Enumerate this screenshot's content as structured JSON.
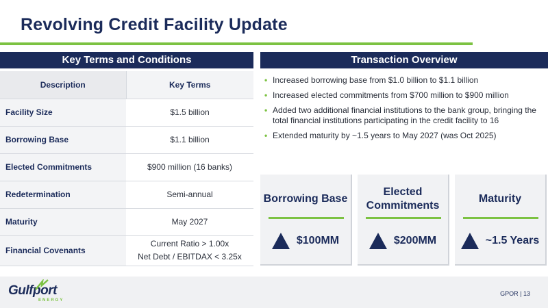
{
  "title": "Revolving Credit Facility Update",
  "left_panel": {
    "header": "Key Terms and Conditions",
    "columns": [
      "Description",
      "Key Terms"
    ],
    "rows": [
      {
        "desc": "Facility Size",
        "terms": [
          "$1.5 billion"
        ]
      },
      {
        "desc": "Borrowing Base",
        "terms": [
          "$1.1 billion"
        ]
      },
      {
        "desc": "Elected Commitments",
        "terms": [
          "$900 million (16 banks)"
        ]
      },
      {
        "desc": "Redetermination",
        "terms": [
          "Semi-annual"
        ]
      },
      {
        "desc": "Maturity",
        "terms": [
          "May 2027"
        ]
      },
      {
        "desc": "Financial Covenants",
        "terms": [
          "Current Ratio > 1.00x",
          "Net Debt / EBITDAX < 3.25x"
        ]
      }
    ]
  },
  "right_panel": {
    "header": "Transaction Overview",
    "bullets": [
      "Increased borrowing base from $1.0 billion to $1.1 billion",
      "Increased elected commitments from $700 million to $900 million",
      "Added two additional financial institutions to the bank group, bringing the total financial institutions participating in the credit facility to 16",
      "Extended maturity by ~1.5 years to May 2027 (was Oct 2025)"
    ],
    "bullet_marker": "•"
  },
  "cards": [
    {
      "title": "Borrowing Base",
      "value": "$100MM",
      "icon": "up-triangle-icon"
    },
    {
      "title": "Elected Commitments",
      "value": "$200MM",
      "icon": "up-triangle-icon"
    },
    {
      "title": "Maturity",
      "value": "~1.5 Years",
      "icon": "up-triangle-icon"
    }
  ],
  "footer": {
    "logo_text": "Gulfport",
    "logo_sub": "ENERGY",
    "page_label": "GPOR | 13"
  },
  "colors": {
    "navy": "#1b2b5a",
    "green": "#7cc242"
  }
}
